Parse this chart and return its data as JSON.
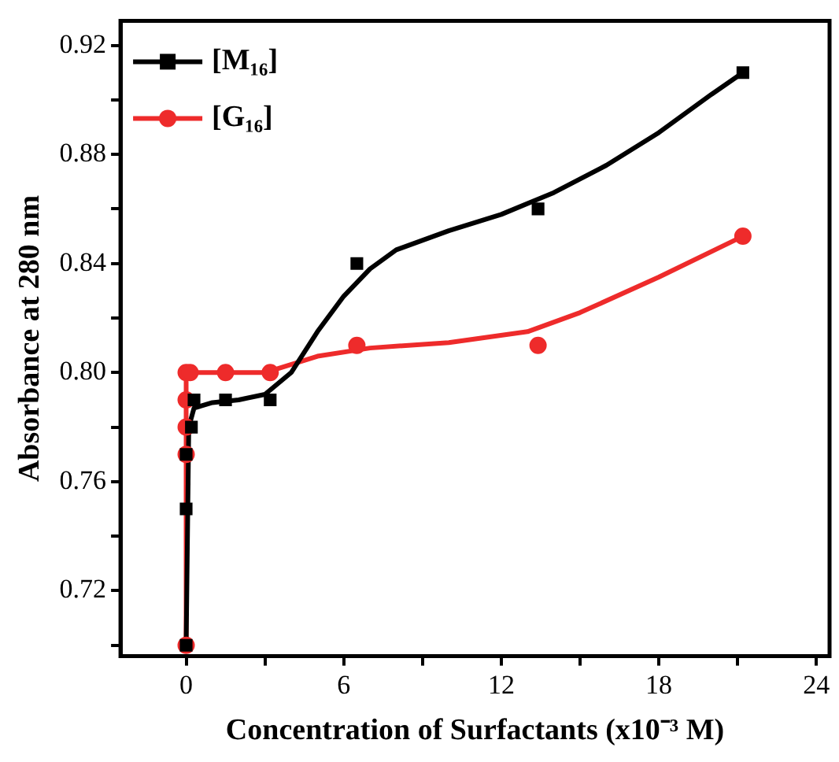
{
  "chart_data": {
    "type": "scatter",
    "xlabel": "Concentration of Surfactants (x10⁻³ M)",
    "ylabel": "Absorbance at 280 nm",
    "xlim": [
      -2.5,
      24.5
    ],
    "ylim": [
      0.696,
      0.929
    ],
    "xticks": [
      0,
      {
        "value": 3,
        "label": null
      },
      6,
      {
        "value": 9,
        "label": null
      },
      12,
      {
        "value": 15,
        "label": null
      },
      18,
      {
        "value": 21,
        "label": null
      },
      24
    ],
    "yticks": [
      {
        "value": 0.7,
        "label": null
      },
      {
        "value": 0.72,
        "label": "0.72"
      },
      {
        "value": 0.74,
        "label": null
      },
      {
        "value": 0.76,
        "label": "0.76"
      },
      {
        "value": 0.78,
        "label": null
      },
      {
        "value": 0.8,
        "label": "0.80"
      },
      {
        "value": 0.82,
        "label": null
      },
      {
        "value": 0.84,
        "label": "0.84"
      },
      {
        "value": 0.86,
        "label": null
      },
      {
        "value": 0.88,
        "label": "0.88"
      },
      {
        "value": 0.9,
        "label": null
      },
      {
        "value": 0.92,
        "label": "0.92"
      }
    ],
    "legend": "top left",
    "series": [
      {
        "name": "[M₁₆]",
        "marker": "square",
        "color": "#000000",
        "x": [
          0,
          0,
          0,
          0.2,
          0.3,
          1.5,
          3.2,
          6.5,
          13.4,
          21.2
        ],
        "values": [
          0.7,
          0.75,
          0.77,
          0.78,
          0.79,
          0.79,
          0.79,
          0.84,
          0.86,
          0.91
        ]
      },
      {
        "name": "[G₁₆]",
        "marker": "circle",
        "color": "#ee2b2b",
        "x": [
          0,
          0,
          0,
          0,
          0,
          0.15,
          1.5,
          3.2,
          6.5,
          13.4,
          21.2
        ],
        "values": [
          0.7,
          0.77,
          0.78,
          0.79,
          0.8,
          0.8,
          0.8,
          0.8,
          0.81,
          0.81,
          0.85
        ]
      },
      {
        "type": "line",
        "marker": "none",
        "color": "#000000",
        "x": [
          0,
          0.1,
          0.3,
          1,
          2,
          3,
          4,
          5,
          6,
          7,
          8,
          10,
          12,
          14,
          16,
          18,
          20,
          21.2
        ],
        "values": [
          0.7,
          0.78,
          0.787,
          0.789,
          0.79,
          0.792,
          0.8,
          0.815,
          0.828,
          0.838,
          0.845,
          0.852,
          0.858,
          0.866,
          0.876,
          0.888,
          0.902,
          0.91
        ]
      },
      {
        "type": "line",
        "marker": "none",
        "color": "#ee2b2b",
        "x": [
          0,
          0,
          0.3,
          3,
          5,
          7,
          10,
          13,
          15,
          18,
          21.2
        ],
        "values": [
          0.7,
          0.8,
          0.8,
          0.8,
          0.806,
          0.809,
          0.811,
          0.815,
          0.822,
          0.835,
          0.85
        ]
      }
    ]
  }
}
